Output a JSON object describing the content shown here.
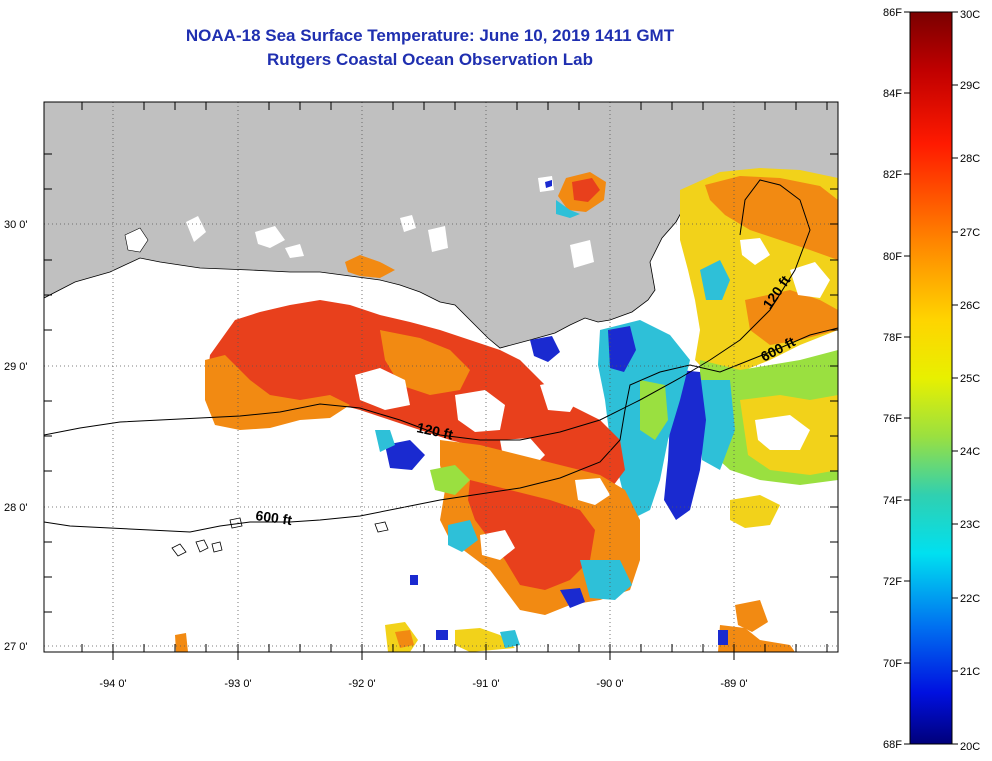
{
  "title": {
    "line1": "NOAA-18 Sea Surface Temperature:  June 10, 2019 1411 GMT",
    "line2": "Rutgers Coastal Ocean Observation Lab"
  },
  "axes": {
    "lat_labels": [
      "30 0'",
      "29 0'",
      "28 0'",
      "27 0'"
    ],
    "lon_labels": [
      "-94 0'",
      "-93 0'",
      "-92 0'",
      "-91 0'",
      "-90 0'",
      "-89 0'"
    ]
  },
  "contours": {
    "label_120_west": "120 ft",
    "label_600_west": "600 ft",
    "label_120_east": "120 ft",
    "label_600_east": "600 ft"
  },
  "colorbar": {
    "fahrenheit": [
      "86F",
      "84F",
      "82F",
      "80F",
      "78F",
      "76F",
      "74F",
      "72F",
      "70F",
      "68F"
    ],
    "celsius": [
      "30C",
      "29C",
      "28C",
      "27C",
      "26C",
      "25C",
      "24C",
      "23C",
      "22C",
      "21C",
      "20C"
    ]
  },
  "colors": {
    "land": "#c0c0c0",
    "title": "#1f2fb0",
    "warm": "#e8401c",
    "orange": "#f28a12",
    "yellow": "#f2d21a",
    "cyan": "#2ec0d8",
    "blue": "#1a2ad0"
  }
}
